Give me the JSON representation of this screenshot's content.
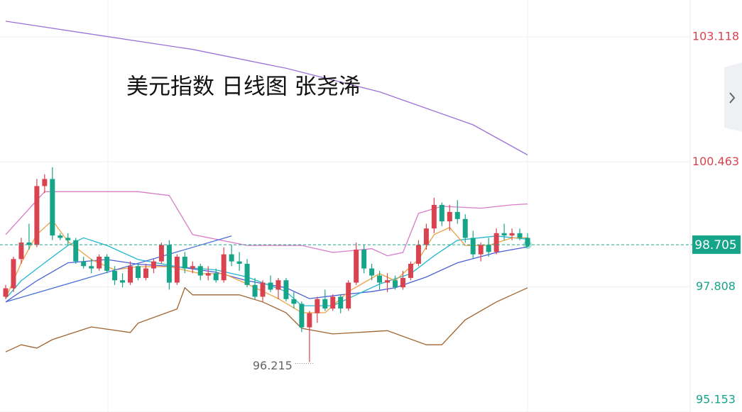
{
  "chart_data": {
    "type": "candlestick",
    "title": "美元指数 日线图 张尧浠",
    "ylim": [
      95.153,
      103.9
    ],
    "yticks": [
      103.118,
      100.463,
      97.808,
      95.153
    ],
    "last_price": 98.705,
    "annotation": {
      "value": 96.215,
      "label": "96.215"
    },
    "up_color": "#d9434f",
    "down_color": "#17a589",
    "open": [
      97.6,
      97.78,
      98.4,
      98.75,
      98.7,
      99.95,
      100.1,
      98.9,
      98.85,
      98.8,
      98.35,
      98.25,
      98.2,
      98.45,
      98.15,
      97.95,
      97.9,
      98.25,
      98.0,
      98.2,
      98.35,
      98.7,
      97.9,
      98.45,
      98.2,
      98.25,
      98.05,
      98.1,
      97.95,
      98.5,
      98.35,
      98.3,
      97.85,
      97.6,
      97.9,
      97.75,
      97.95,
      97.55,
      97.45,
      96.95,
      97.25,
      97.55,
      97.35,
      97.6,
      97.35,
      97.9,
      98.6,
      98.2,
      98.05,
      97.9,
      97.95,
      97.8,
      98.0,
      98.3,
      98.7,
      99.05,
      99.55,
      99.2,
      99.4,
      99.25,
      98.85,
      98.5,
      98.7,
      98.55,
      98.95,
      98.9,
      98.95,
      98.85
    ],
    "high": [
      97.85,
      98.45,
      98.85,
      99.15,
      100.1,
      100.2,
      100.35,
      98.95,
      98.95,
      98.85,
      98.45,
      98.4,
      98.5,
      98.5,
      98.25,
      98.1,
      98.35,
      98.3,
      98.3,
      98.4,
      98.75,
      98.8,
      98.5,
      98.55,
      98.35,
      98.3,
      98.25,
      98.2,
      98.65,
      98.7,
      98.55,
      98.4,
      98.0,
      97.95,
      98.05,
      98.0,
      98.0,
      97.7,
      97.5,
      97.3,
      97.6,
      97.75,
      97.65,
      97.65,
      97.95,
      98.75,
      98.7,
      98.3,
      98.15,
      98.1,
      98.05,
      98.15,
      98.35,
      98.8,
      99.15,
      99.7,
      99.6,
      99.55,
      99.65,
      99.35,
      99.0,
      98.75,
      98.85,
      99.05,
      99.15,
      99.05,
      99.05,
      98.95
    ],
    "low": [
      97.55,
      97.7,
      98.3,
      98.6,
      98.65,
      99.8,
      98.8,
      98.8,
      98.7,
      98.3,
      98.2,
      98.1,
      98.15,
      98.1,
      97.85,
      97.8,
      97.85,
      97.95,
      97.95,
      98.1,
      98.3,
      97.75,
      97.85,
      98.1,
      98.1,
      97.95,
      97.95,
      97.9,
      97.9,
      98.25,
      98.15,
      97.8,
      97.55,
      97.5,
      97.7,
      97.55,
      97.5,
      97.35,
      96.85,
      96.215,
      97.05,
      97.3,
      97.3,
      97.25,
      97.3,
      97.85,
      98.1,
      97.95,
      97.75,
      97.7,
      97.75,
      97.75,
      97.95,
      98.25,
      98.6,
      98.95,
      99.1,
      99.0,
      99.15,
      98.75,
      98.4,
      98.35,
      98.45,
      98.5,
      98.8,
      98.8,
      98.8,
      98.7
    ],
    "close": [
      97.78,
      98.4,
      98.75,
      98.7,
      99.95,
      100.1,
      98.9,
      98.85,
      98.8,
      98.35,
      98.25,
      98.2,
      98.45,
      98.15,
      97.95,
      97.9,
      98.25,
      98.0,
      98.2,
      98.35,
      98.7,
      97.9,
      98.45,
      98.2,
      98.25,
      98.05,
      98.1,
      97.95,
      98.5,
      98.35,
      98.3,
      97.85,
      97.6,
      97.9,
      97.75,
      97.95,
      97.55,
      97.45,
      96.95,
      97.25,
      97.55,
      97.35,
      97.6,
      97.35,
      97.9,
      98.6,
      98.2,
      98.05,
      97.9,
      97.95,
      97.8,
      98.0,
      98.3,
      98.7,
      99.05,
      99.55,
      99.2,
      99.4,
      99.25,
      98.85,
      98.5,
      98.7,
      98.55,
      98.95,
      98.9,
      98.95,
      98.85,
      98.705
    ],
    "lines": [
      {
        "color": "#9b72d8",
        "x": [
          0,
          12,
          24,
          36,
          48,
          60,
          67
        ],
        "values": [
          103.45,
          103.15,
          102.85,
          102.45,
          101.95,
          101.25,
          100.61
        ]
      },
      {
        "color": "#d97bc8",
        "x": [
          0,
          5,
          17,
          21,
          24,
          31,
          38,
          42,
          47,
          49,
          51,
          53,
          56,
          61,
          65,
          67
        ],
        "values": [
          98.92,
          99.83,
          99.83,
          99.75,
          98.92,
          98.69,
          98.69,
          98.54,
          98.62,
          98.47,
          98.54,
          99.37,
          99.52,
          99.48,
          99.55,
          99.57
        ]
      },
      {
        "color": "#a0632e",
        "x": [
          0,
          2,
          4,
          6,
          11,
          16,
          17,
          22,
          23,
          24,
          30,
          33,
          36,
          38,
          42,
          49,
          54,
          56,
          59,
          63,
          67
        ],
        "values": [
          96.43,
          96.58,
          96.51,
          96.69,
          96.96,
          96.84,
          97.04,
          97.34,
          97.79,
          97.64,
          97.64,
          97.49,
          97.26,
          96.93,
          96.81,
          96.88,
          96.58,
          96.58,
          97.11,
          97.49,
          97.79
        ]
      },
      {
        "color": "#4a5fd8",
        "x": [
          0,
          4,
          8,
          13,
          17,
          22,
          27,
          31,
          36,
          39,
          43,
          47,
          50,
          54,
          58,
          63,
          67
        ],
        "values": [
          97.49,
          97.94,
          98.32,
          98.39,
          98.29,
          98.24,
          98.12,
          97.94,
          97.79,
          97.56,
          97.64,
          97.71,
          97.79,
          98.02,
          98.32,
          98.54,
          98.66
        ]
      },
      {
        "color": "#22b8d0",
        "x": [
          0,
          2,
          5,
          8,
          10,
          13,
          17,
          22,
          27,
          31,
          36,
          38,
          42,
          45,
          48,
          52,
          55,
          58,
          63,
          67
        ],
        "values": [
          97.56,
          97.94,
          98.32,
          98.69,
          98.85,
          98.69,
          98.39,
          98.24,
          98.17,
          98.02,
          97.71,
          97.41,
          97.41,
          97.64,
          97.87,
          98.09,
          98.47,
          98.8,
          98.89,
          98.82
        ]
      },
      {
        "color": "#f0a040",
        "x": [
          0,
          2,
          4,
          6,
          8,
          11,
          14,
          17,
          21,
          25,
          28,
          31,
          35,
          38,
          41,
          44,
          48,
          50,
          53,
          55,
          57,
          59,
          62,
          65,
          67
        ],
        "values": [
          97.56,
          98.32,
          98.92,
          99.22,
          98.77,
          98.39,
          98.17,
          98.24,
          98.24,
          98.09,
          98.09,
          97.87,
          97.56,
          97.26,
          97.26,
          97.71,
          98.09,
          97.94,
          98.39,
          98.92,
          99.07,
          98.69,
          98.69,
          98.85,
          98.85
        ]
      },
      {
        "color": "#4a6fd8",
        "x": [
          0,
          29
        ],
        "values": [
          97.49,
          98.89
        ]
      }
    ]
  }
}
